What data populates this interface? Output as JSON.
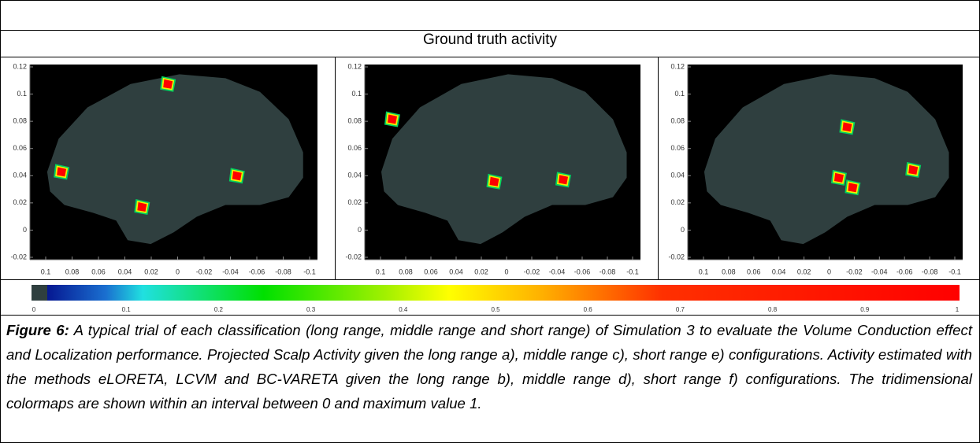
{
  "header": {
    "title": "Ground truth activity"
  },
  "panels": [
    {
      "yticks": [
        "0.12",
        "0.1",
        "0.08",
        "0.06",
        "0.04",
        "0.02",
        "0",
        "-0.02"
      ],
      "xticks": [
        "0.1",
        "0.08",
        "0.06",
        "0.04",
        "0.02",
        "0",
        "-0.02",
        "-0.04",
        "-0.06",
        "-0.08",
        "-0.1"
      ]
    },
    {
      "yticks": [
        "0.12",
        "0.1",
        "0.08",
        "0.06",
        "0.04",
        "0.02",
        "0",
        "-0.02"
      ],
      "xticks": [
        "0.1",
        "0.08",
        "0.06",
        "0.04",
        "0.02",
        "0",
        "-0.02",
        "-0.04",
        "-0.06",
        "-0.08",
        "-0.1"
      ]
    },
    {
      "yticks": [
        "0.12",
        "0.1",
        "0.08",
        "0.06",
        "0.04",
        "0.02",
        "0",
        "-0.02"
      ],
      "xticks": [
        "0.1",
        "0.08",
        "0.06",
        "0.04",
        "0.02",
        "0",
        "-0.02",
        "-0.04",
        "-0.06",
        "-0.08",
        "-0.1"
      ]
    }
  ],
  "colorbar": {
    "ticks": [
      "0",
      "0.1",
      "0.2",
      "0.3",
      "0.4",
      "0.5",
      "0.6",
      "0.7",
      "0.8",
      "0.9",
      "1"
    ]
  },
  "caption": {
    "label": "Figure 6:",
    "text": " A typical trial of each classification (long range, middle range and short range) of Simulation 3 to evaluate the Volume Conduction effect and Localization performance. Projected Scalp Activity given the long range a), middle range c), short range e) configurations. Activity estimated with the methods eLORETA, LCVM and BC-VARETA given the long range b), middle range d), short range f) configurations. The tridimensional colormaps are shown within an interval between 0 and maximum value 1."
  }
}
